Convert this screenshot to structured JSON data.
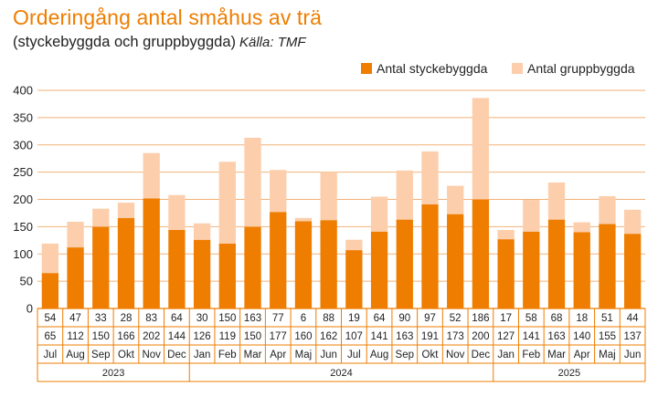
{
  "title": "Orderingång antal småhus av trä",
  "subtitle": "(styckebyggda och gruppbyggda)",
  "source": "Källa: TMF",
  "colors": {
    "single": "#ee7d00",
    "group": "#fcceab",
    "accent": "#ee7d00",
    "grid": "#f2b27a"
  },
  "chart_data": {
    "type": "bar",
    "stacked": true,
    "categories": [
      "Jul",
      "Aug",
      "Sep",
      "Okt",
      "Nov",
      "Dec",
      "Jan",
      "Feb",
      "Mar",
      "Apr",
      "Maj",
      "Jun",
      "Jul",
      "Aug",
      "Sep",
      "Okt",
      "Nov",
      "Dec",
      "Jan",
      "Feb",
      "Mar",
      "Apr",
      "Maj",
      "Jun"
    ],
    "years": [
      {
        "label": "2023",
        "start": 0,
        "end": 5
      },
      {
        "label": "2024",
        "start": 6,
        "end": 17
      },
      {
        "label": "2025",
        "start": 18,
        "end": 23
      }
    ],
    "series": [
      {
        "name": "Antal styckebyggda",
        "values": [
          65,
          112,
          150,
          166,
          202,
          144,
          126,
          119,
          150,
          177,
          160,
          162,
          107,
          141,
          163,
          191,
          173,
          200,
          127,
          141,
          163,
          140,
          155,
          137
        ]
      },
      {
        "name": "Antal gruppbyggda",
        "values": [
          54,
          47,
          33,
          28,
          83,
          64,
          30,
          150,
          163,
          77,
          6,
          88,
          19,
          64,
          90,
          97,
          52,
          186,
          17,
          58,
          68,
          18,
          51,
          44
        ]
      }
    ],
    "ylim": [
      0,
      400
    ],
    "yticks": [
      0,
      50,
      100,
      150,
      200,
      250,
      300,
      350,
      400
    ],
    "legend_position": "top-right"
  }
}
